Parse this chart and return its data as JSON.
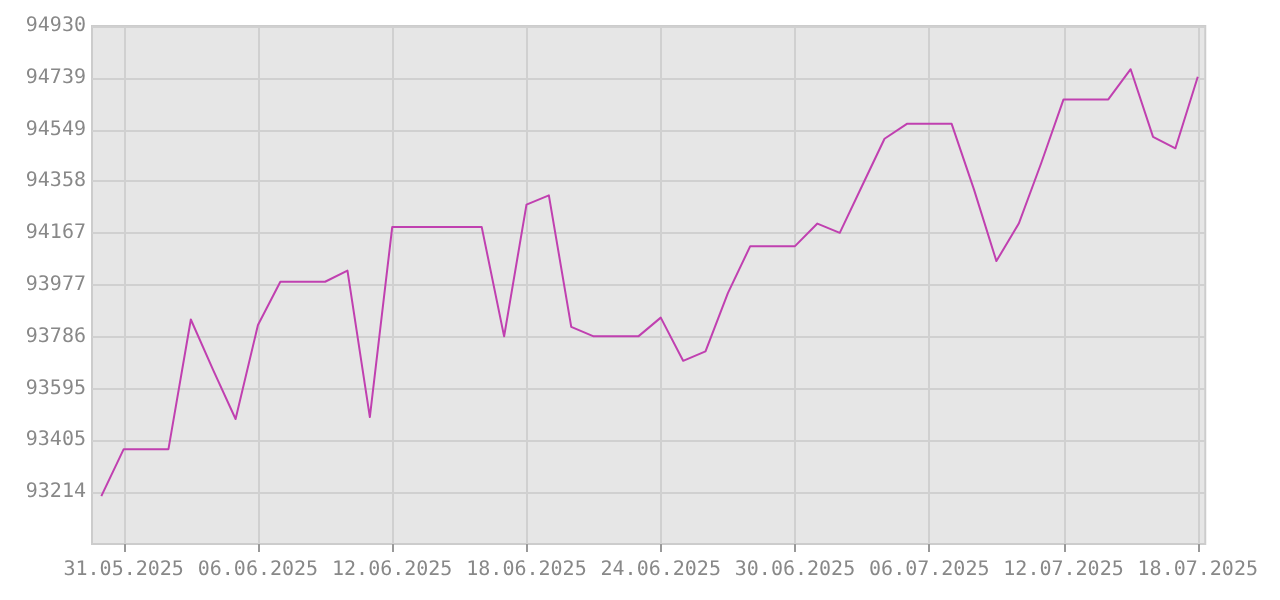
{
  "chart_data": {
    "type": "line",
    "color": "#c040b0",
    "x": [
      "2025-05-30",
      "2025-05-31",
      "2025-06-01",
      "2025-06-02",
      "2025-06-03",
      "2025-06-04",
      "2025-06-05",
      "2025-06-06",
      "2025-06-07",
      "2025-06-08",
      "2025-06-09",
      "2025-06-10",
      "2025-06-11",
      "2025-06-12",
      "2025-06-13",
      "2025-06-14",
      "2025-06-15",
      "2025-06-16",
      "2025-06-17",
      "2025-06-18",
      "2025-06-19",
      "2025-06-20",
      "2025-06-21",
      "2025-06-22",
      "2025-06-23",
      "2025-06-24",
      "2025-06-25",
      "2025-06-26",
      "2025-06-27",
      "2025-06-28",
      "2025-06-29",
      "2025-06-30",
      "2025-07-01",
      "2025-07-02",
      "2025-07-03",
      "2025-07-04",
      "2025-07-05",
      "2025-07-06",
      "2025-07-07",
      "2025-07-08",
      "2025-07-09",
      "2025-07-10",
      "2025-07-11",
      "2025-07-12",
      "2025-07-13",
      "2025-07-14",
      "2025-07-15",
      "2025-07-16",
      "2025-07-17",
      "2025-07-18"
    ],
    "values": [
      93200,
      93373,
      93373,
      93373,
      93850,
      93664,
      93484,
      93830,
      93989,
      93989,
      93989,
      94030,
      93491,
      94190,
      94190,
      94190,
      94190,
      94190,
      93788,
      94273,
      94307,
      93823,
      93788,
      93788,
      93788,
      93857,
      93698,
      93733,
      93947,
      94120,
      94120,
      94120,
      94203,
      94169,
      94342,
      94515,
      94570,
      94570,
      94570,
      94328,
      94065,
      94203,
      94425,
      94660,
      94660,
      94660,
      94771,
      94522,
      94480,
      94743
    ],
    "xlim": [
      "2025-05-29T14:00",
      "2025-07-18T08:00"
    ],
    "xticks": [
      {
        "value": "2025-05-31",
        "label": "31.05.2025"
      },
      {
        "value": "2025-06-06",
        "label": "06.06.2025"
      },
      {
        "value": "2025-06-12",
        "label": "12.06.2025"
      },
      {
        "value": "2025-06-18",
        "label": "18.06.2025"
      },
      {
        "value": "2025-06-24",
        "label": "24.06.2025"
      },
      {
        "value": "2025-06-30",
        "label": "30.06.2025"
      },
      {
        "value": "2025-07-06",
        "label": "06.07.2025"
      },
      {
        "value": "2025-07-12",
        "label": "12.07.2025"
      },
      {
        "value": "2025-07-18",
        "label": "18.07.2025"
      }
    ],
    "ylim": [
      93024,
      94930
    ],
    "yticks": [
      93214,
      93405,
      93595,
      93786,
      93977,
      94167,
      94358,
      94549,
      94739,
      94930
    ],
    "grid": true
  }
}
